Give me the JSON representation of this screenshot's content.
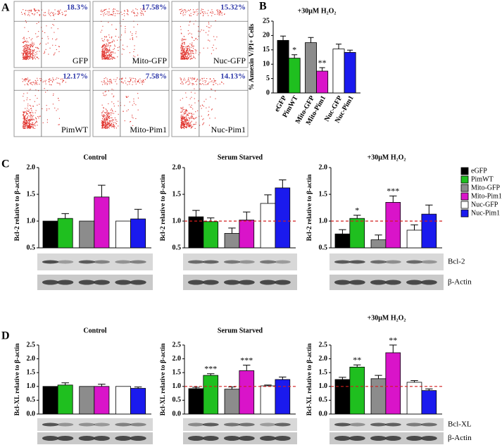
{
  "panel_labels": [
    "A",
    "B",
    "C",
    "D"
  ],
  "flow_plots": [
    {
      "percent": "18.3%",
      "sample": "GFP"
    },
    {
      "percent": "17.58%",
      "sample": "Mito-GFP"
    },
    {
      "percent": "15.32%",
      "sample": "Nuc-GFP"
    },
    {
      "percent": "12.17%",
      "sample": "PimWT"
    },
    {
      "percent": "7.58%",
      "sample": "Mito-Pim1"
    },
    {
      "percent": "14.13%",
      "sample": "Nuc-Pim1"
    }
  ],
  "legend": [
    {
      "name": "eGFP",
      "color": "#000000"
    },
    {
      "name": "PimWT",
      "color": "#1fbf1f"
    },
    {
      "name": "Mito-GFP",
      "color": "#8c8c8c"
    },
    {
      "name": "Mito-Pim1",
      "color": "#d914c9"
    },
    {
      "name": "Nuc-GFP",
      "color": "#ffffff"
    },
    {
      "name": "Nuc-Pim1",
      "color": "#1a1aee"
    }
  ],
  "blot_labels": {
    "C": [
      "Bcl-2",
      "β-Actin"
    ],
    "D": [
      "Bcl-XL",
      "β-Actin"
    ]
  },
  "chart_data": [
    {
      "type": "bar",
      "title": "+30μM H₂O₂",
      "y_label": "% Annexin V/PI+ Cells",
      "categories": [
        "eGFP",
        "PimWT",
        "Mito-GFP",
        "Mito-Pim1",
        "Nuc-GFP",
        "Nuc-Pim1"
      ],
      "values": [
        18.3,
        12.1,
        17.5,
        7.6,
        15.3,
        14.1
      ],
      "errors": [
        1.5,
        1.2,
        1.8,
        1.2,
        1.7,
        0.8
      ],
      "significance": [
        null,
        "*",
        null,
        "**",
        null,
        null
      ],
      "colors": [
        "#000000",
        "#1fbf1f",
        "#8c8c8c",
        "#d914c9",
        "#ffffff",
        "#1a1aee"
      ],
      "ylim": [
        0,
        25
      ],
      "yticks": [
        0,
        5,
        10,
        15,
        20,
        25
      ]
    },
    {
      "type": "bar",
      "title": "Control",
      "y_label": "Bcl-2 relative to β-actin",
      "values": [
        1.0,
        1.05,
        1.0,
        1.45,
        1.0,
        1.04
      ],
      "errors": [
        null,
        0.09,
        null,
        0.22,
        null,
        0.18
      ],
      "significance": [
        null,
        null,
        null,
        null,
        null,
        null
      ],
      "colors": [
        "#000000",
        "#1fbf1f",
        "#8c8c8c",
        "#d914c9",
        "#ffffff",
        "#1a1aee"
      ],
      "ylim": [
        0.5,
        2.0
      ],
      "yticks": [
        0.5,
        {
          "value": 1,
          "label": "1.0"
        },
        1.5,
        {
          "value": 2,
          "label": "2.0"
        }
      ]
    },
    {
      "type": "bar",
      "title": "Serum Starved",
      "y_label": "Bcl-2 relative to β-actin",
      "values": [
        1.08,
        0.99,
        0.77,
        1.02,
        1.33,
        1.62
      ],
      "errors": [
        0.12,
        0.07,
        0.1,
        0.15,
        0.16,
        0.15
      ],
      "significance": [
        null,
        null,
        null,
        null,
        null,
        null
      ],
      "colors": [
        "#000000",
        "#1fbf1f",
        "#8c8c8c",
        "#d914c9",
        "#ffffff",
        "#1a1aee"
      ],
      "ylim": [
        0.5,
        2.0
      ],
      "yticks": [
        0.5,
        {
          "value": 1,
          "label": "1.0"
        },
        1.5,
        {
          "value": 2,
          "label": "2.0"
        }
      ],
      "reference_line": 1
    },
    {
      "type": "bar",
      "title": "+30μM H₂O₂",
      "y_label": "Bcl-2 relative to β-actin",
      "values": [
        0.76,
        1.05,
        0.65,
        1.35,
        0.83,
        1.13
      ],
      "errors": [
        0.08,
        0.06,
        0.09,
        0.12,
        0.1,
        0.17
      ],
      "significance": [
        null,
        "*",
        null,
        "***",
        null,
        null
      ],
      "colors": [
        "#000000",
        "#1fbf1f",
        "#8c8c8c",
        "#d914c9",
        "#ffffff",
        "#1a1aee"
      ],
      "ylim": [
        0.5,
        2.0
      ],
      "yticks": [
        0.5,
        {
          "value": 1,
          "label": "1.0"
        },
        1.5,
        {
          "value": 2,
          "label": "2.0"
        }
      ],
      "reference_line": 1
    },
    {
      "type": "bar",
      "title": "Control",
      "y_label": "Bcl-XL relative to β-actin",
      "values": [
        1.0,
        1.05,
        1.0,
        1.0,
        1.0,
        0.93
      ],
      "errors": [
        null,
        0.08,
        null,
        0.08,
        null,
        0.05
      ],
      "significance": [
        null,
        null,
        null,
        null,
        null,
        null
      ],
      "colors": [
        "#000000",
        "#1fbf1f",
        "#8c8c8c",
        "#d914c9",
        "#ffffff",
        "#1a1aee"
      ],
      "ylim": [
        0,
        2.5
      ],
      "yticks": [
        {
          "value": 0,
          "label": "0.0"
        },
        0.5,
        {
          "value": 1,
          "label": "1.0"
        },
        1.5,
        {
          "value": 2,
          "label": "2.0"
        },
        2.5
      ]
    },
    {
      "type": "bar",
      "title": "Serum Starved",
      "y_label": "Bcl-XL relative to β-actin",
      "values": [
        0.92,
        1.4,
        0.9,
        1.57,
        1.02,
        1.25
      ],
      "errors": [
        0.05,
        0.06,
        0.08,
        0.2,
        0.03,
        0.09
      ],
      "significance": [
        null,
        "***",
        null,
        "***",
        null,
        null
      ],
      "colors": [
        "#000000",
        "#1fbf1f",
        "#8c8c8c",
        "#d914c9",
        "#ffffff",
        "#1a1aee"
      ],
      "ylim": [
        0,
        2.5
      ],
      "yticks": [
        {
          "value": 0,
          "label": "0.0"
        },
        0.5,
        {
          "value": 1,
          "label": "1.0"
        },
        1.5,
        {
          "value": 2,
          "label": "2.0"
        },
        2.5
      ],
      "reference_line": 1
    },
    {
      "type": "bar",
      "title": "+30μM H₂O₂",
      "y_label": "Bcl-XL relative to β-actin",
      "values": [
        1.25,
        1.7,
        1.28,
        2.22,
        1.15,
        0.85
      ],
      "errors": [
        0.08,
        0.08,
        0.12,
        0.28,
        0.06,
        0.06
      ],
      "significance": [
        null,
        "**",
        null,
        "**",
        null,
        null
      ],
      "colors": [
        "#000000",
        "#1fbf1f",
        "#8c8c8c",
        "#d914c9",
        "#ffffff",
        "#1a1aee"
      ],
      "ylim": [
        0,
        2.5
      ],
      "yticks": [
        {
          "value": 0,
          "label": "0.0"
        },
        0.5,
        {
          "value": 1,
          "label": "1.0"
        },
        1.5,
        {
          "value": 2,
          "label": "2.0"
        },
        2.5
      ],
      "reference_line": 1
    }
  ]
}
